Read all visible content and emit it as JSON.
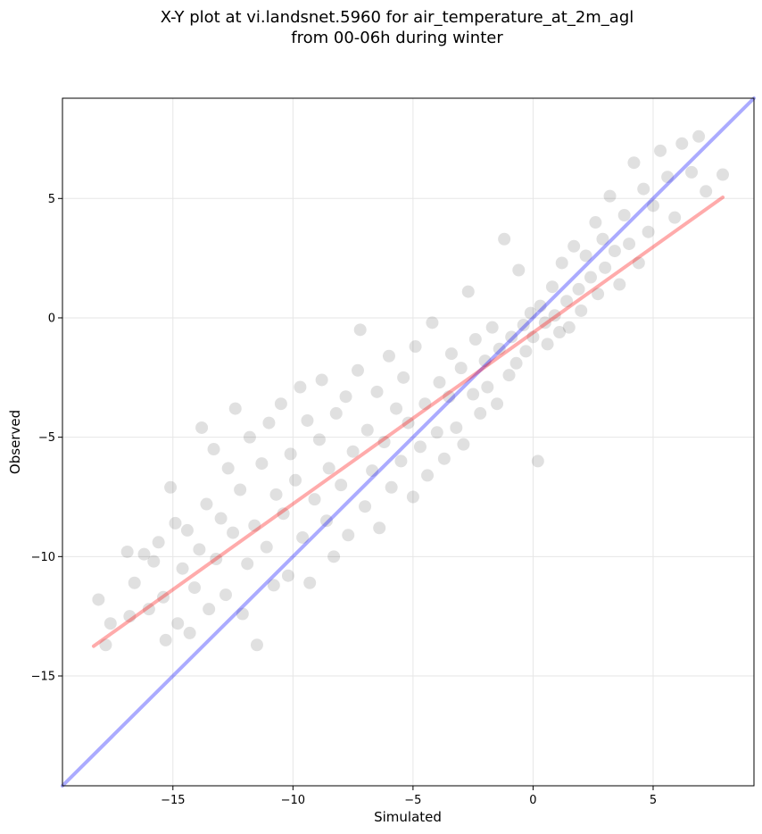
{
  "chart_data": {
    "type": "scatter",
    "title": "X-Y plot at vi.landsnet.5960 for air_temperature_at_2m_agl",
    "subtitle": "from 00-06h during winter",
    "xlabel": "Simulated",
    "ylabel": "Observed",
    "xlim": [
      -19.6,
      9.2
    ],
    "ylim": [
      -19.6,
      9.2
    ],
    "xticks": [
      -15,
      -10,
      -5,
      0,
      5
    ],
    "yticks": [
      -15,
      -10,
      -5,
      0,
      5
    ],
    "xtick_labels": [
      "−15",
      "−10",
      "−5",
      "0",
      "5"
    ],
    "ytick_labels": [
      "−15",
      "−10",
      "−5",
      "0",
      "5"
    ],
    "grid": true,
    "points": {
      "name": "",
      "color": "#000000",
      "opacity": 0.12,
      "values": [
        [
          -18.1,
          -11.8
        ],
        [
          -17.8,
          -13.7
        ],
        [
          -17.6,
          -12.8
        ],
        [
          -16.9,
          -9.8
        ],
        [
          -16.8,
          -12.5
        ],
        [
          -16.6,
          -11.1
        ],
        [
          -16.2,
          -9.9
        ],
        [
          -16.0,
          -12.2
        ],
        [
          -15.8,
          -10.2
        ],
        [
          -15.6,
          -9.4
        ],
        [
          -15.4,
          -11.7
        ],
        [
          -15.3,
          -13.5
        ],
        [
          -15.1,
          -7.1
        ],
        [
          -14.9,
          -8.6
        ],
        [
          -14.8,
          -12.8
        ],
        [
          -14.6,
          -10.5
        ],
        [
          -14.4,
          -8.9
        ],
        [
          -14.3,
          -13.2
        ],
        [
          -14.1,
          -11.3
        ],
        [
          -13.9,
          -9.7
        ],
        [
          -13.8,
          -4.6
        ],
        [
          -13.6,
          -7.8
        ],
        [
          -13.5,
          -12.2
        ],
        [
          -13.3,
          -5.5
        ],
        [
          -13.2,
          -10.1
        ],
        [
          -13.0,
          -8.4
        ],
        [
          -12.8,
          -11.6
        ],
        [
          -12.7,
          -6.3
        ],
        [
          -12.5,
          -9.0
        ],
        [
          -12.4,
          -3.8
        ],
        [
          -12.2,
          -7.2
        ],
        [
          -12.1,
          -12.4
        ],
        [
          -11.9,
          -10.3
        ],
        [
          -11.8,
          -5.0
        ],
        [
          -11.6,
          -8.7
        ],
        [
          -11.5,
          -13.7
        ],
        [
          -11.3,
          -6.1
        ],
        [
          -11.1,
          -9.6
        ],
        [
          -11.0,
          -4.4
        ],
        [
          -10.8,
          -11.2
        ],
        [
          -10.7,
          -7.4
        ],
        [
          -10.5,
          -3.6
        ],
        [
          -10.4,
          -8.2
        ],
        [
          -10.2,
          -10.8
        ],
        [
          -10.1,
          -5.7
        ],
        [
          -9.9,
          -6.8
        ],
        [
          -9.7,
          -2.9
        ],
        [
          -9.6,
          -9.2
        ],
        [
          -9.4,
          -4.3
        ],
        [
          -9.3,
          -11.1
        ],
        [
          -9.1,
          -7.6
        ],
        [
          -8.9,
          -5.1
        ],
        [
          -8.8,
          -2.6
        ],
        [
          -8.6,
          -8.5
        ],
        [
          -8.5,
          -6.3
        ],
        [
          -8.3,
          -10.0
        ],
        [
          -8.2,
          -4.0
        ],
        [
          -8.0,
          -7.0
        ],
        [
          -7.8,
          -3.3
        ],
        [
          -7.7,
          -9.1
        ],
        [
          -7.5,
          -5.6
        ],
        [
          -7.3,
          -2.2
        ],
        [
          -7.2,
          -0.5
        ],
        [
          -7.0,
          -7.9
        ],
        [
          -6.9,
          -4.7
        ],
        [
          -6.7,
          -6.4
        ],
        [
          -6.5,
          -3.1
        ],
        [
          -6.4,
          -8.8
        ],
        [
          -6.2,
          -5.2
        ],
        [
          -6.0,
          -1.6
        ],
        [
          -5.9,
          -7.1
        ],
        [
          -5.7,
          -3.8
        ],
        [
          -5.5,
          -6.0
        ],
        [
          -5.4,
          -2.5
        ],
        [
          -5.2,
          -4.4
        ],
        [
          -5.0,
          -7.5
        ],
        [
          -4.9,
          -1.2
        ],
        [
          -4.7,
          -5.4
        ],
        [
          -4.5,
          -3.6
        ],
        [
          -4.4,
          -6.6
        ],
        [
          -4.2,
          -0.2
        ],
        [
          -4.0,
          -4.8
        ],
        [
          -3.9,
          -2.7
        ],
        [
          -3.7,
          -5.9
        ],
        [
          -3.5,
          -3.3
        ],
        [
          -3.4,
          -1.5
        ],
        [
          -3.2,
          -4.6
        ],
        [
          -3.0,
          -2.1
        ],
        [
          -2.9,
          -5.3
        ],
        [
          -2.7,
          1.1
        ],
        [
          -2.5,
          -3.2
        ],
        [
          -2.4,
          -0.9
        ],
        [
          -2.2,
          -4.0
        ],
        [
          -2.0,
          -1.8
        ],
        [
          -1.9,
          -2.9
        ],
        [
          -1.7,
          -0.4
        ],
        [
          -1.5,
          -3.6
        ],
        [
          -1.4,
          -1.3
        ],
        [
          -1.2,
          3.3
        ],
        [
          -1.0,
          -2.4
        ],
        [
          -0.9,
          -0.8
        ],
        [
          -0.7,
          -1.9
        ],
        [
          -0.6,
          2.0
        ],
        [
          -0.4,
          -0.3
        ],
        [
          -0.3,
          -1.4
        ],
        [
          -0.1,
          0.2
        ],
        [
          0.0,
          -0.8
        ],
        [
          0.2,
          -6.0
        ],
        [
          0.3,
          0.5
        ],
        [
          0.5,
          -0.2
        ],
        [
          0.6,
          -1.1
        ],
        [
          0.8,
          1.3
        ],
        [
          0.9,
          0.1
        ],
        [
          1.1,
          -0.6
        ],
        [
          1.2,
          2.3
        ],
        [
          1.4,
          0.7
        ],
        [
          1.5,
          -0.4
        ],
        [
          1.7,
          3.0
        ],
        [
          1.9,
          1.2
        ],
        [
          2.0,
          0.3
        ],
        [
          2.2,
          2.6
        ],
        [
          2.4,
          1.7
        ],
        [
          2.6,
          4.0
        ],
        [
          2.7,
          1.0
        ],
        [
          2.9,
          3.3
        ],
        [
          3.0,
          2.1
        ],
        [
          3.2,
          5.1
        ],
        [
          3.4,
          2.8
        ],
        [
          3.6,
          1.4
        ],
        [
          3.8,
          4.3
        ],
        [
          4.0,
          3.1
        ],
        [
          4.2,
          6.5
        ],
        [
          4.4,
          2.3
        ],
        [
          4.6,
          5.4
        ],
        [
          4.8,
          3.6
        ],
        [
          5.0,
          4.7
        ],
        [
          5.3,
          7.0
        ],
        [
          5.6,
          5.9
        ],
        [
          5.9,
          4.2
        ],
        [
          6.2,
          7.3
        ],
        [
          6.6,
          6.1
        ],
        [
          6.9,
          7.6
        ],
        [
          7.2,
          5.3
        ],
        [
          7.9,
          6.0
        ]
      ]
    },
    "lines": [
      {
        "name": "",
        "color": "#0000ff",
        "opacity": 0.33,
        "x": [
          -19.6,
          9.2
        ],
        "y": [
          -19.6,
          9.2
        ]
      },
      {
        "name": "",
        "color": "#ff0000",
        "opacity": 0.33,
        "x": [
          -18.3,
          7.9
        ],
        "y": [
          -13.75,
          5.05
        ]
      }
    ]
  }
}
